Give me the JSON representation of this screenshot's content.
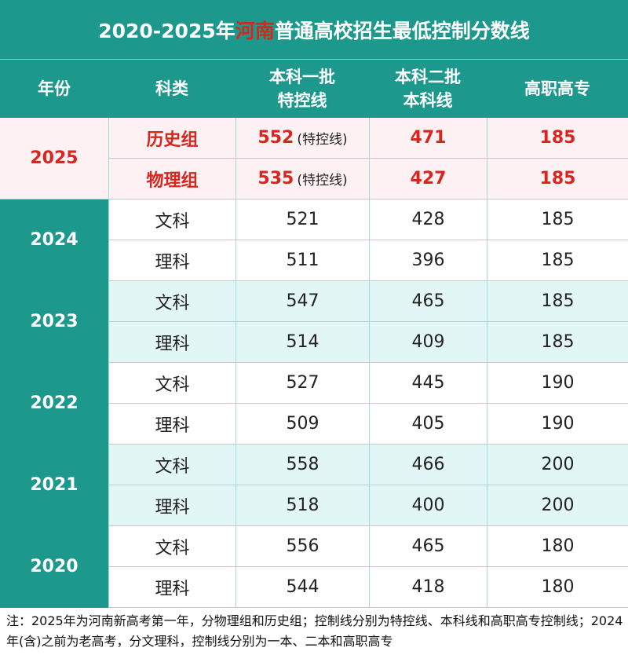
{
  "title": {
    "prefix": "2020-2025年",
    "highlight": "河南",
    "suffix": "普通高校招生最低控制分数线"
  },
  "headers": [
    [
      "年份"
    ],
    [
      "科类"
    ],
    [
      "本科一批",
      "特控线"
    ],
    [
      "本科二批",
      "本科线"
    ],
    [
      "高职高专"
    ]
  ],
  "groups": [
    {
      "year": "2025",
      "rows": [
        {
          "category": "历史组",
          "tier1": 552,
          "tier1_note": "(特控线)",
          "tier2": 471,
          "vocational": 185
        },
        {
          "category": "物理组",
          "tier1": 535,
          "tier1_note": "(特控线)",
          "tier2": 427,
          "vocational": 185
        }
      ]
    },
    {
      "year": "2024",
      "rows": [
        {
          "category": "文科",
          "tier1": 521,
          "tier2": 428,
          "vocational": 185
        },
        {
          "category": "理科",
          "tier1": 511,
          "tier2": 396,
          "vocational": 185
        }
      ]
    },
    {
      "year": "2023",
      "rows": [
        {
          "category": "文科",
          "tier1": 547,
          "tier2": 465,
          "vocational": 185
        },
        {
          "category": "理科",
          "tier1": 514,
          "tier2": 409,
          "vocational": 185
        }
      ]
    },
    {
      "year": "2022",
      "rows": [
        {
          "category": "文科",
          "tier1": 527,
          "tier2": 445,
          "vocational": 190
        },
        {
          "category": "理科",
          "tier1": 509,
          "tier2": 405,
          "vocational": 190
        }
      ]
    },
    {
      "year": "2021",
      "rows": [
        {
          "category": "文科",
          "tier1": 558,
          "tier2": 466,
          "vocational": 200
        },
        {
          "category": "理科",
          "tier1": 518,
          "tier2": 400,
          "vocational": 200
        }
      ]
    },
    {
      "year": "2020",
      "rows": [
        {
          "category": "文科",
          "tier1": 556,
          "tier2": 465,
          "vocational": 180
        },
        {
          "category": "理科",
          "tier1": 544,
          "tier2": 418,
          "vocational": 180
        }
      ]
    }
  ],
  "note": "注：2025年为河南新高考第一年，分物理组和历史组；控制线分别为特控线、本科线和高职高专控制线；2024年(含)之前为老高考，分文理科，控制线分别为一本、二本和高职高专"
}
